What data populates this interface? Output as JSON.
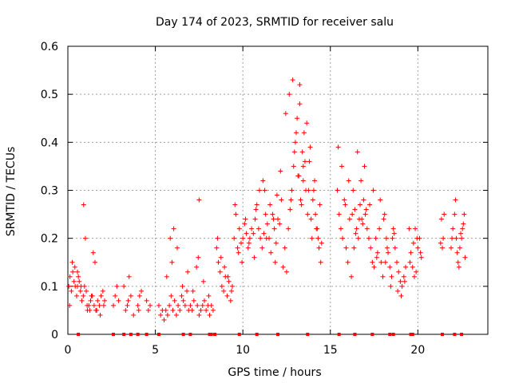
{
  "chart_data": {
    "type": "scatter",
    "title": "Day 174 of 2023, SRMTID for receiver salu",
    "xlabel": "GPS time / hours",
    "ylabel": "SRMTID / TECUs",
    "xlim": [
      0,
      24
    ],
    "ylim": [
      0,
      0.6
    ],
    "xticks": [
      0,
      5,
      10,
      15,
      20
    ],
    "xtick_labels": [
      "0",
      "5",
      "10",
      "15",
      "20"
    ],
    "yticks": [
      0,
      0.1,
      0.2,
      0.3,
      0.4,
      0.5,
      0.6
    ],
    "ytick_labels": [
      "0",
      "0.1",
      "0.2",
      "0.3",
      "0.4",
      "0.5",
      "0.6"
    ],
    "grid": true,
    "marker": "plus",
    "color": "#ff0000",
    "series": [
      {
        "name": "SRMTID",
        "x": [
          0.05,
          0.12,
          0.2,
          0.28,
          0.35,
          0.42,
          0.5,
          0.1,
          0.25,
          0.4,
          0.55,
          0.65,
          0.72,
          0.8,
          0.88,
          0.95,
          1.05,
          1.12,
          1.2,
          1.3,
          1.4,
          1.5,
          1.6,
          1.7,
          1.8,
          1.9,
          2.0,
          2.1,
          0.6,
          0.75,
          0.9,
          1.1,
          1.25,
          1.45,
          1.65,
          1.85,
          2.05,
          1.0,
          1.35,
          1.55,
          0.55,
          2.6,
          2.7,
          2.8,
          2.9,
          3.3,
          3.4,
          3.5,
          3.6,
          3.75,
          4.0,
          4.1,
          4.2,
          4.5,
          4.6,
          4.7,
          3.2,
          3.45,
          4.05,
          5.2,
          5.3,
          5.4,
          5.5,
          5.6,
          5.7,
          5.8,
          5.9,
          6.0,
          6.1,
          6.2,
          6.3,
          6.4,
          6.5,
          6.6,
          6.7,
          6.8,
          6.9,
          7.0,
          7.1,
          7.2,
          7.4,
          7.5,
          7.6,
          7.7,
          7.8,
          7.9,
          8.0,
          8.1,
          8.2,
          8.3,
          5.65,
          5.95,
          6.25,
          6.55,
          6.85,
          7.15,
          7.45,
          7.75,
          8.05,
          6.05,
          7.35,
          5.85,
          7.5,
          8.5,
          8.6,
          8.7,
          8.8,
          8.9,
          9.0,
          9.1,
          9.2,
          9.3,
          9.4,
          8.55,
          8.75,
          8.95,
          9.15,
          9.35,
          9.5,
          9.6,
          9.7,
          9.8,
          9.9,
          10.0,
          10.1,
          10.2,
          10.3,
          10.4,
          10.5,
          9.55,
          9.75,
          9.95,
          10.15,
          10.35,
          10.6,
          10.7,
          10.8,
          10.9,
          11.0,
          11.1,
          11.2,
          11.3,
          11.4,
          11.5,
          11.6,
          11.7,
          11.8,
          11.9,
          12.0,
          12.1,
          12.2,
          10.75,
          10.95,
          11.15,
          11.35,
          11.55,
          11.75,
          11.95,
          12.15,
          10.65,
          11.25,
          11.85,
          12.3,
          12.4,
          12.5,
          12.6,
          12.7,
          12.8,
          12.9,
          13.0,
          13.1,
          13.2,
          13.3,
          13.4,
          13.5,
          13.6,
          13.7,
          13.8,
          13.9,
          14.0,
          14.1,
          14.2,
          14.3,
          14.4,
          14.5,
          12.45,
          12.65,
          12.85,
          13.05,
          13.25,
          13.45,
          13.65,
          13.85,
          14.05,
          14.25,
          14.45,
          12.95,
          13.15,
          13.35,
          13.55,
          13.75,
          13.95,
          14.15,
          14.35,
          12.75,
          13.25,
          13.45,
          15.4,
          15.5,
          15.6,
          15.7,
          15.8,
          15.9,
          16.0,
          16.1,
          16.2,
          16.3,
          16.4,
          16.5,
          16.6,
          16.7,
          16.8,
          16.9,
          17.0,
          17.1,
          17.2,
          17.3,
          17.4,
          17.5,
          15.45,
          15.65,
          15.85,
          16.05,
          16.25,
          16.45,
          16.65,
          16.85,
          17.05,
          17.25,
          17.45,
          16.55,
          16.75,
          16.95,
          16.35,
          17.6,
          17.7,
          17.8,
          17.9,
          18.0,
          18.1,
          18.2,
          18.3,
          18.4,
          18.5,
          18.6,
          18.7,
          18.8,
          18.9,
          19.0,
          19.1,
          19.2,
          19.3,
          17.65,
          17.85,
          18.05,
          18.25,
          18.45,
          18.65,
          18.85,
          19.05,
          19.25,
          18.55,
          18.15,
          19.5,
          19.6,
          19.7,
          19.8,
          19.9,
          20.0,
          20.1,
          20.2,
          19.55,
          19.75,
          19.95,
          20.15,
          19.85,
          21.3,
          21.4,
          21.5,
          21.35,
          21.45,
          21.9,
          22.0,
          22.1,
          22.2,
          22.3,
          22.4,
          22.5,
          22.6,
          22.7,
          21.95,
          22.15,
          22.35,
          22.55,
          22.65,
          22.25,
          22.45
        ],
        "y": [
          0.1,
          0.12,
          0.09,
          0.13,
          0.11,
          0.1,
          0.08,
          0.06,
          0.15,
          0.14,
          0.1,
          0.11,
          0.09,
          0.07,
          0.08,
          0.1,
          0.09,
          0.05,
          0.06,
          0.07,
          0.08,
          0.06,
          0.05,
          0.07,
          0.06,
          0.08,
          0.09,
          0.07,
          0.12,
          0.1,
          0.27,
          0.06,
          0.05,
          0.17,
          0.05,
          0.04,
          0.06,
          0.2,
          0.08,
          0.15,
          0.13,
          0.06,
          0.08,
          0.1,
          0.07,
          0.05,
          0.06,
          0.12,
          0.08,
          0.04,
          0.06,
          0.08,
          0.09,
          0.07,
          0.05,
          0.06,
          0.1,
          0.07,
          0.05,
          0.06,
          0.04,
          0.05,
          0.03,
          0.05,
          0.04,
          0.06,
          0.08,
          0.05,
          0.07,
          0.04,
          0.06,
          0.05,
          0.08,
          0.07,
          0.06,
          0.09,
          0.05,
          0.06,
          0.05,
          0.07,
          0.06,
          0.04,
          0.05,
          0.06,
          0.07,
          0.05,
          0.06,
          0.04,
          0.06,
          0.05,
          0.12,
          0.15,
          0.18,
          0.1,
          0.13,
          0.09,
          0.16,
          0.11,
          0.08,
          0.22,
          0.14,
          0.2,
          0.28,
          0.18,
          0.15,
          0.13,
          0.1,
          0.09,
          0.12,
          0.08,
          0.11,
          0.07,
          0.1,
          0.2,
          0.16,
          0.14,
          0.12,
          0.09,
          0.2,
          0.25,
          0.18,
          0.22,
          0.19,
          0.2,
          0.23,
          0.21,
          0.18,
          0.2,
          0.22,
          0.27,
          0.17,
          0.15,
          0.24,
          0.19,
          0.21,
          0.24,
          0.27,
          0.22,
          0.2,
          0.18,
          0.21,
          0.25,
          0.23,
          0.2,
          0.17,
          0.25,
          0.22,
          0.19,
          0.24,
          0.23,
          0.28,
          0.26,
          0.3,
          0.32,
          0.2,
          0.27,
          0.24,
          0.29,
          0.34,
          0.16,
          0.3,
          0.15,
          0.14,
          0.18,
          0.13,
          0.22,
          0.26,
          0.3,
          0.35,
          0.4,
          0.45,
          0.33,
          0.28,
          0.38,
          0.42,
          0.3,
          0.25,
          0.36,
          0.24,
          0.28,
          0.32,
          0.22,
          0.2,
          0.27,
          0.19,
          0.46,
          0.5,
          0.53,
          0.42,
          0.48,
          0.35,
          0.44,
          0.39,
          0.3,
          0.22,
          0.15,
          0.38,
          0.33,
          0.27,
          0.36,
          0.3,
          0.2,
          0.25,
          0.18,
          0.28,
          0.52,
          0.32,
          0.3,
          0.25,
          0.22,
          0.2,
          0.28,
          0.18,
          0.15,
          0.24,
          0.12,
          0.3,
          0.26,
          0.22,
          0.2,
          0.27,
          0.24,
          0.28,
          0.25,
          0.22,
          0.2,
          0.18,
          0.15,
          0.14,
          0.39,
          0.35,
          0.27,
          0.32,
          0.25,
          0.21,
          0.24,
          0.23,
          0.26,
          0.27,
          0.3,
          0.38,
          0.32,
          0.35,
          0.18,
          0.2,
          0.17,
          0.22,
          0.15,
          0.12,
          0.25,
          0.2,
          0.17,
          0.14,
          0.12,
          0.22,
          0.18,
          0.15,
          0.13,
          0.11,
          0.1,
          0.12,
          0.14,
          0.16,
          0.28,
          0.24,
          0.18,
          0.1,
          0.21,
          0.09,
          0.08,
          0.11,
          0.2,
          0.15,
          0.22,
          0.17,
          0.14,
          0.12,
          0.13,
          0.18,
          0.2,
          0.16,
          0.15,
          0.19,
          0.2,
          0.17,
          0.22,
          0.19,
          0.18,
          0.25,
          0.24,
          0.2,
          0.18,
          0.22,
          0.25,
          0.2,
          0.15,
          0.18,
          0.2,
          0.23,
          0.16,
          0.2,
          0.28,
          0.14,
          0.22,
          0.25,
          0.17,
          0.21
        ],
        "gap_markers_x": [
          0.6,
          2.6,
          3.2,
          3.6,
          4.0,
          4.5,
          5.2,
          6.6,
          7.0,
          8.1,
          8.2,
          8.4,
          9.8,
          10.8,
          12.0,
          13.7,
          15.5,
          16.4,
          17.4,
          18.4,
          18.6,
          19.6,
          19.7,
          21.4,
          22.1,
          22.5
        ]
      }
    ]
  }
}
